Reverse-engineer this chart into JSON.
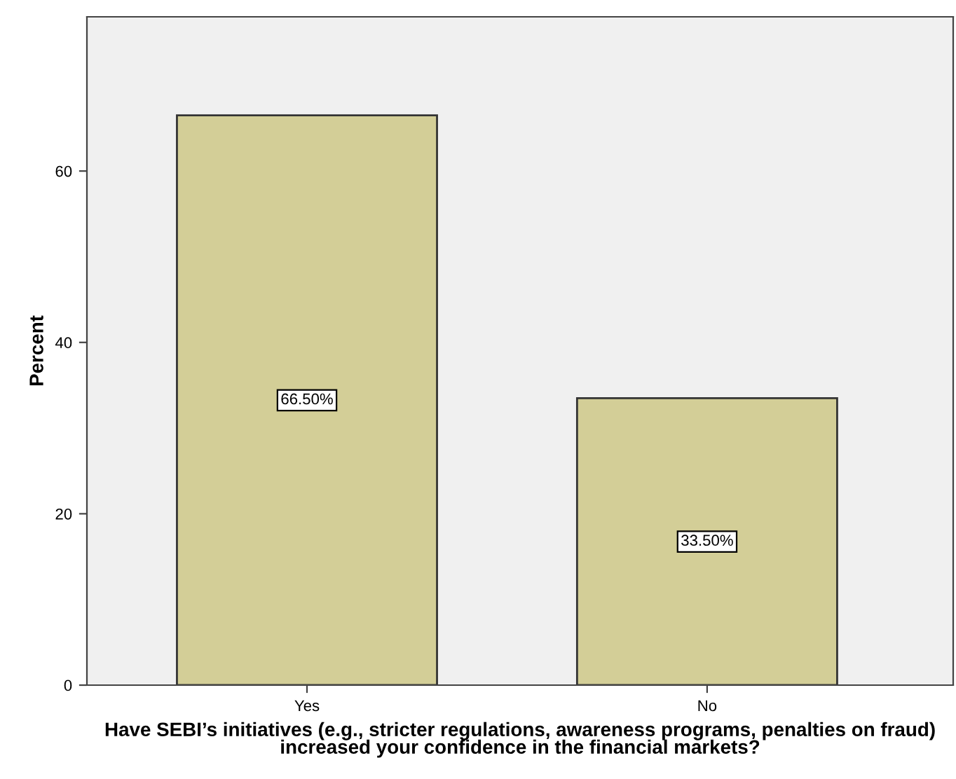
{
  "chart_data": {
    "type": "bar",
    "categories": [
      "Yes",
      "No"
    ],
    "values": [
      66.5,
      33.5
    ],
    "value_labels": [
      "66.50%",
      "33.50%"
    ],
    "color": "#d3ce97",
    "ylabel": "Percent",
    "xlabel": "Have SEBI’s initiatives (e.g., stricter regulations, awareness programs, penalties on fraud) increased your confidence in the financial markets?",
    "ylim": [
      0,
      78
    ],
    "yticks": [
      0,
      20,
      40,
      60
    ],
    "grid": false,
    "legend": false
  }
}
